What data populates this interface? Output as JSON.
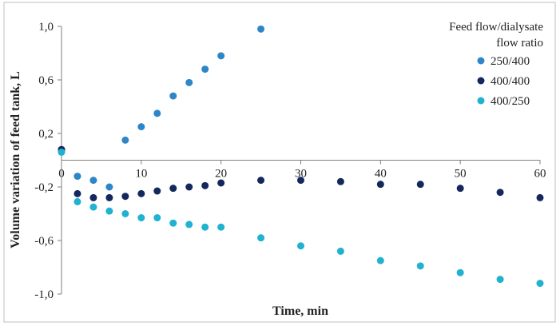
{
  "chart_data": {
    "type": "scatter",
    "title": "",
    "xlabel": "Time, min",
    "ylabel": "Volume variation of feed tank, L",
    "xlim": [
      0,
      60
    ],
    "ylim": [
      -1.0,
      1.0
    ],
    "x_ticks": [
      0,
      10,
      20,
      30,
      40,
      50,
      60
    ],
    "x_tick_labels": [
      "0",
      "10",
      "20",
      "30",
      "40",
      "50",
      "60"
    ],
    "y_ticks": [
      1.0,
      0.6,
      0.2,
      -0.2,
      -0.6,
      -1.0
    ],
    "y_tick_labels": [
      "1,0",
      "0,6",
      "0,2",
      "-0,2",
      "-0,6",
      "-1,0"
    ],
    "grid": false,
    "legend": {
      "title_line1": "Feed flow/dialysate",
      "title_line2": "flow ratio",
      "placement": "top-right"
    },
    "series": [
      {
        "name": "250/400",
        "color": "#2e86c8",
        "points": [
          [
            0,
            0.07
          ],
          [
            2,
            -0.12
          ],
          [
            4,
            -0.15
          ],
          [
            6,
            -0.2
          ],
          [
            8,
            0.15
          ],
          [
            10,
            0.25
          ],
          [
            12,
            0.35
          ],
          [
            14,
            0.48
          ],
          [
            16,
            0.58
          ],
          [
            18,
            0.68
          ],
          [
            20,
            0.78
          ],
          [
            25,
            0.98
          ]
        ]
      },
      {
        "name": "400/400",
        "color": "#14285e",
        "points": [
          [
            0,
            0.08
          ],
          [
            2,
            -0.25
          ],
          [
            4,
            -0.28
          ],
          [
            6,
            -0.28
          ],
          [
            8,
            -0.27
          ],
          [
            10,
            -0.25
          ],
          [
            12,
            -0.23
          ],
          [
            14,
            -0.21
          ],
          [
            16,
            -0.2
          ],
          [
            18,
            -0.19
          ],
          [
            20,
            -0.17
          ],
          [
            25,
            -0.15
          ],
          [
            30,
            -0.15
          ],
          [
            35,
            -0.16
          ],
          [
            40,
            -0.18
          ],
          [
            45,
            -0.18
          ],
          [
            50,
            -0.21
          ],
          [
            55,
            -0.24
          ],
          [
            60,
            -0.28
          ]
        ]
      },
      {
        "name": "400/250",
        "color": "#20b2d0",
        "points": [
          [
            0,
            0.06
          ],
          [
            2,
            -0.31
          ],
          [
            4,
            -0.35
          ],
          [
            6,
            -0.38
          ],
          [
            8,
            -0.4
          ],
          [
            10,
            -0.43
          ],
          [
            12,
            -0.43
          ],
          [
            14,
            -0.47
          ],
          [
            16,
            -0.48
          ],
          [
            18,
            -0.5
          ],
          [
            20,
            -0.5
          ],
          [
            25,
            -0.58
          ],
          [
            30,
            -0.64
          ],
          [
            35,
            -0.68
          ],
          [
            40,
            -0.75
          ],
          [
            45,
            -0.79
          ],
          [
            50,
            -0.84
          ],
          [
            55,
            -0.89
          ],
          [
            60,
            -0.92
          ]
        ]
      }
    ]
  }
}
